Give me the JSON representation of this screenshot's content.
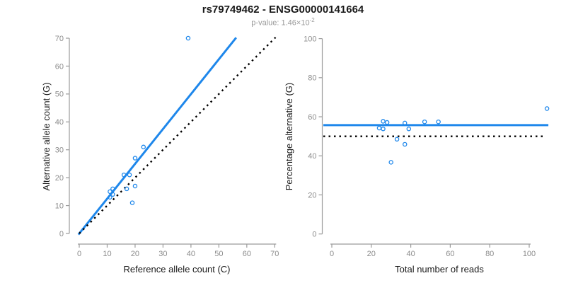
{
  "header": {
    "title": "rs79749462 - ENSG00000141664",
    "subtitle_prefix": "p-value: 1.46×10",
    "subtitle_exponent": "-2"
  },
  "colors": {
    "accent_blue": "#1E87EB",
    "line_black": "#000000",
    "axis_line_gray": "#9B9B9B",
    "tick_label_gray": "#8C8C8C",
    "axis_title_color": "#1A1A1A",
    "title_color": "#1A1A1A",
    "subtitle_gray": "#9A9A9A",
    "background": "#FFFFFF"
  },
  "chart_data": [
    {
      "id": "allele-counts-scatter",
      "type": "scatter",
      "xlabel": "Reference allele count (C)",
      "ylabel": "Alternative allele count (G)",
      "xlim": [
        0,
        70
      ],
      "ylim": [
        0,
        70
      ],
      "xticks": [
        0,
        10,
        20,
        30,
        40,
        50,
        60,
        70
      ],
      "yticks": [
        0,
        10,
        20,
        30,
        40,
        50,
        60,
        70
      ],
      "grid": false,
      "legend": "none",
      "points": [
        [
          11,
          13
        ],
        [
          11,
          15
        ],
        [
          12,
          14
        ],
        [
          12,
          16
        ],
        [
          16,
          21
        ],
        [
          17,
          16
        ],
        [
          18,
          21
        ],
        [
          19,
          11
        ],
        [
          20,
          17
        ],
        [
          20,
          27
        ],
        [
          23,
          31
        ],
        [
          39,
          70
        ]
      ],
      "lines": [
        {
          "name": "fit-line",
          "kind": "solid",
          "color_ref": "accent_blue",
          "width": 3,
          "x1": -0.3,
          "y1": -0.4,
          "x2": 56.2,
          "y2": 70.2
        },
        {
          "name": "identity-line",
          "kind": "dotted",
          "color_ref": "line_black",
          "width": 2.4,
          "x1": 0,
          "y1": 0,
          "x2": 70.3,
          "y2": 70.3
        }
      ]
    },
    {
      "id": "percentage-vs-reads-scatter",
      "type": "scatter",
      "xlabel": "Total number of reads",
      "ylabel": "Percentage alternative (G)",
      "xlim": [
        0,
        100
      ],
      "ylim": [
        0,
        100
      ],
      "xticks": [
        0,
        20,
        40,
        60,
        80,
        100
      ],
      "yticks": [
        0,
        20,
        40,
        60,
        80,
        100
      ],
      "grid": false,
      "legend": "none",
      "points": [
        [
          24,
          54.2
        ],
        [
          26,
          53.8
        ],
        [
          26,
          57.7
        ],
        [
          28,
          57.1
        ],
        [
          30,
          36.7
        ],
        [
          33,
          48.5
        ],
        [
          37,
          45.9
        ],
        [
          37,
          56.8
        ],
        [
          39,
          53.8
        ],
        [
          47,
          57.4
        ],
        [
          54,
          57.4
        ],
        [
          109,
          64.2
        ]
      ],
      "lines": [
        {
          "name": "mean-percentage-line",
          "kind": "solid",
          "color_ref": "accent_blue",
          "width": 3,
          "x1": -4.3,
          "y1": 55.7,
          "x2": 109.7,
          "y2": 55.7
        },
        {
          "name": "fifty-percent-line",
          "kind": "dotted",
          "color_ref": "line_black",
          "width": 2.4,
          "x1": -4.3,
          "y1": 50,
          "x2": 107,
          "y2": 50
        }
      ]
    }
  ]
}
